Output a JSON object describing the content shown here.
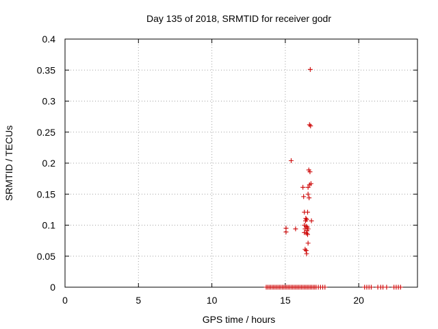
{
  "chart_data": {
    "type": "scatter",
    "title": "Day 135 of 2018, SRMTID for receiver godr",
    "xlabel": "GPS time / hours",
    "ylabel": "SRMTID / TECUs",
    "xlim": [
      0,
      24
    ],
    "ylim": [
      0,
      0.4
    ],
    "xticks": [
      0,
      5,
      10,
      15,
      20
    ],
    "xtick_labels": [
      "0",
      "5",
      "10",
      "15",
      "20"
    ],
    "yticks": [
      0,
      0.05,
      0.1,
      0.15,
      0.2,
      0.25,
      0.3,
      0.35,
      0.4
    ],
    "ytick_labels": [
      "0",
      "0.05",
      "0.1",
      "0.15",
      "0.2",
      "0.25",
      "0.3",
      "0.35",
      "0.4"
    ],
    "grid": true,
    "marker": "+",
    "color": "#cc0000",
    "series": [
      {
        "name": "SRMTID",
        "points": [
          [
            16.7,
            0.351
          ],
          [
            16.65,
            0.262
          ],
          [
            16.72,
            0.26
          ],
          [
            15.4,
            0.204
          ],
          [
            16.6,
            0.189
          ],
          [
            16.68,
            0.186
          ],
          [
            16.75,
            0.167
          ],
          [
            16.65,
            0.165
          ],
          [
            16.55,
            0.161
          ],
          [
            16.2,
            0.161
          ],
          [
            16.55,
            0.15
          ],
          [
            16.25,
            0.146
          ],
          [
            16.62,
            0.144
          ],
          [
            16.3,
            0.121
          ],
          [
            16.52,
            0.121
          ],
          [
            16.4,
            0.111
          ],
          [
            16.45,
            0.109
          ],
          [
            16.38,
            0.107
          ],
          [
            16.78,
            0.107
          ],
          [
            16.3,
            0.1
          ],
          [
            16.42,
            0.098
          ],
          [
            16.5,
            0.097
          ],
          [
            16.35,
            0.094
          ],
          [
            16.55,
            0.094
          ],
          [
            16.48,
            0.091
          ],
          [
            16.3,
            0.088
          ],
          [
            16.45,
            0.087
          ],
          [
            16.52,
            0.085
          ],
          [
            15.05,
            0.095
          ],
          [
            15.7,
            0.094
          ],
          [
            15.05,
            0.089
          ],
          [
            16.55,
            0.071
          ],
          [
            16.35,
            0.061
          ],
          [
            16.42,
            0.059
          ],
          [
            16.45,
            0.054
          ],
          [
            13.7,
            0
          ],
          [
            13.8,
            0
          ],
          [
            13.9,
            0
          ],
          [
            14.0,
            0
          ],
          [
            14.1,
            0
          ],
          [
            14.2,
            0
          ],
          [
            14.3,
            0
          ],
          [
            14.4,
            0
          ],
          [
            14.5,
            0
          ],
          [
            14.6,
            0
          ],
          [
            14.7,
            0
          ],
          [
            14.8,
            0
          ],
          [
            14.9,
            0
          ],
          [
            15.0,
            0
          ],
          [
            15.1,
            0
          ],
          [
            15.2,
            0
          ],
          [
            15.3,
            0
          ],
          [
            15.4,
            0
          ],
          [
            15.5,
            0
          ],
          [
            15.6,
            0
          ],
          [
            15.7,
            0
          ],
          [
            15.8,
            0
          ],
          [
            15.9,
            0
          ],
          [
            16.0,
            0
          ],
          [
            16.1,
            0
          ],
          [
            16.2,
            0
          ],
          [
            16.3,
            0
          ],
          [
            16.4,
            0
          ],
          [
            16.5,
            0
          ],
          [
            16.6,
            0
          ],
          [
            16.7,
            0
          ],
          [
            16.8,
            0
          ],
          [
            16.9,
            0
          ],
          [
            17.0,
            0
          ],
          [
            17.1,
            0
          ],
          [
            17.25,
            0
          ],
          [
            17.4,
            0
          ],
          [
            17.55,
            0
          ],
          [
            17.7,
            0
          ],
          [
            20.4,
            0
          ],
          [
            20.55,
            0
          ],
          [
            20.7,
            0
          ],
          [
            20.85,
            0
          ],
          [
            21.3,
            0
          ],
          [
            21.5,
            0
          ],
          [
            21.65,
            0
          ],
          [
            21.9,
            0
          ],
          [
            22.4,
            0
          ],
          [
            22.55,
            0
          ],
          [
            22.7,
            0
          ],
          [
            22.85,
            0
          ]
        ]
      }
    ]
  }
}
